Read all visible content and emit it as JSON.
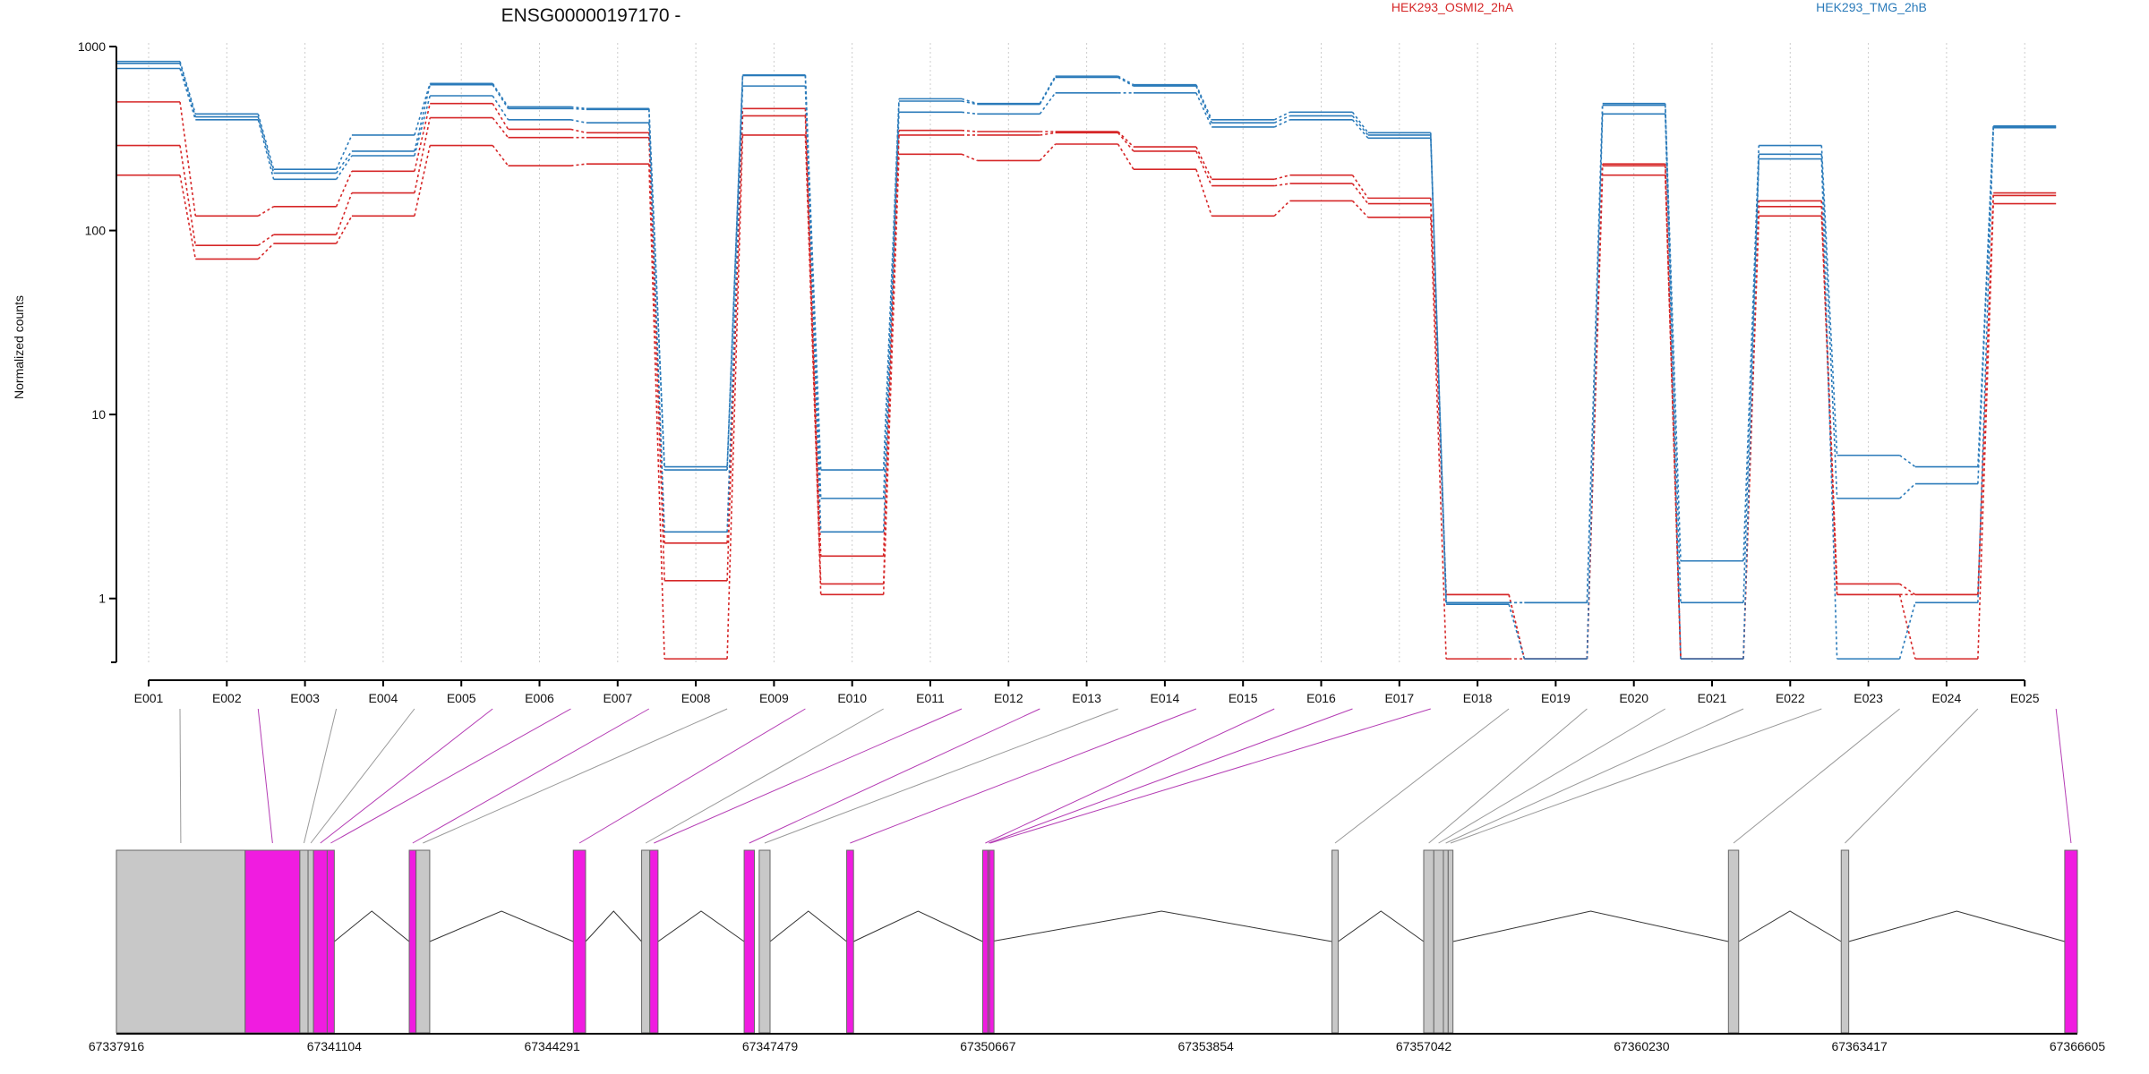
{
  "chart_data": {
    "type": "line",
    "title": "ENSG00000197170 -",
    "ylabel": "Normalized counts",
    "yscale": "log",
    "ylim": [
      0.45,
      1000
    ],
    "yticks": [
      {
        "value": 1,
        "label": "1"
      },
      {
        "value": 10,
        "label": "10"
      },
      {
        "value": 100,
        "label": "100"
      },
      {
        "value": 1000,
        "label": "1000"
      }
    ],
    "grid": "vertical-dotted",
    "legend": [
      {
        "name": "HEK293_OSMI2_2hA",
        "color": "#d62728"
      },
      {
        "name": "HEK293_TMG_2hB",
        "color": "#2b7bba"
      }
    ],
    "legend_position": "top",
    "categories": [
      "E001",
      "E002",
      "E003",
      "E004",
      "E005",
      "E006",
      "E007",
      "E008",
      "E009",
      "E010",
      "E011",
      "E012",
      "E013",
      "E014",
      "E015",
      "E016",
      "E017",
      "E018",
      "E019",
      "E020",
      "E021",
      "E022",
      "E023",
      "E024",
      "E025"
    ],
    "series": [
      {
        "group": "HEK293_OSMI2_2hA",
        "color": "#d62728",
        "values": [
          500,
          120,
          135,
          210,
          490,
          355,
          340,
          2.0,
          460,
          1.7,
          350,
          345,
          345,
          285,
          190,
          200,
          150,
          1.05,
          0.47,
          230,
          0.47,
          145,
          1.2,
          1.05,
          160
        ]
      },
      {
        "group": "HEK293_OSMI2_2hA",
        "color": "#d62728",
        "values": [
          290,
          83,
          95,
          160,
          410,
          320,
          320,
          1.25,
          420,
          1.2,
          330,
          330,
          340,
          270,
          175,
          180,
          140,
          1.05,
          0.47,
          225,
          0.47,
          135,
          1.05,
          1.05,
          155
        ]
      },
      {
        "group": "HEK293_OSMI2_2hA",
        "color": "#d62728",
        "values": [
          200,
          70,
          85,
          120,
          290,
          225,
          230,
          0.47,
          330,
          1.05,
          260,
          240,
          295,
          215,
          120,
          145,
          118,
          0.47,
          0.47,
          200,
          0.47,
          120,
          1.05,
          0.47,
          140
        ]
      },
      {
        "group": "HEK293_TMG_2hB",
        "color": "#2b7bba",
        "values": [
          830,
          430,
          215,
          330,
          630,
          470,
          460,
          5.2,
          700,
          5.0,
          520,
          490,
          690,
          620,
          400,
          440,
          340,
          0.95,
          0.95,
          490,
          1.6,
          290,
          6.0,
          5.2,
          370
        ]
      },
      {
        "group": "HEK293_TMG_2hB",
        "color": "#2b7bba",
        "values": [
          810,
          415,
          205,
          270,
          620,
          460,
          455,
          5.0,
          695,
          3.5,
          505,
          485,
          680,
          610,
          385,
          420,
          330,
          0.95,
          0.95,
          480,
          0.95,
          260,
          3.5,
          4.2,
          365
        ]
      },
      {
        "group": "HEK293_TMG_2hB",
        "color": "#2b7bba",
        "values": [
          760,
          400,
          190,
          255,
          540,
          400,
          385,
          2.3,
          610,
          2.3,
          440,
          430,
          560,
          560,
          365,
          400,
          318,
          0.93,
          0.47,
          430,
          0.47,
          245,
          0.47,
          0.95,
          362
        ]
      }
    ],
    "gene_model": {
      "coordinate_labels": [
        "67337916",
        "67341104",
        "67344291",
        "67347479",
        "67350667",
        "67353854",
        "67357042",
        "67360230",
        "67363417",
        "67366605"
      ],
      "coordinate_range": [
        67337916,
        67366605
      ],
      "colors": {
        "highlighted": "#f01ce0",
        "normal": "#c8c8c8",
        "highlight_connector": "#b43cb4",
        "normal_connector": "#999999"
      },
      "exons": [
        {
          "label": "E001",
          "start": 67337916,
          "end": 67339800,
          "highlighted": false
        },
        {
          "label": "E002",
          "start": 67339800,
          "end": 67340600,
          "highlighted": true
        },
        {
          "label": "E003",
          "start": 67340600,
          "end": 67340720,
          "highlighted": false
        },
        {
          "label": "E004",
          "start": 67340720,
          "end": 67340800,
          "highlighted": false
        },
        {
          "label": "E005",
          "start": 67340800,
          "end": 67341000,
          "highlighted": true
        },
        {
          "label": "E006",
          "start": 67341000,
          "end": 67341104,
          "highlighted": true
        },
        {
          "label": "E007",
          "start": 67342200,
          "end": 67342300,
          "highlighted": true
        },
        {
          "label": "E008",
          "start": 67342300,
          "end": 67342500,
          "highlighted": false
        },
        {
          "label": "E009",
          "start": 67344600,
          "end": 67344780,
          "highlighted": true
        },
        {
          "label": "E010",
          "start": 67345600,
          "end": 67345720,
          "highlighted": false
        },
        {
          "label": "E011",
          "start": 67345720,
          "end": 67345840,
          "highlighted": true
        },
        {
          "label": "E012",
          "start": 67347100,
          "end": 67347250,
          "highlighted": true
        },
        {
          "label": "E013",
          "start": 67347320,
          "end": 67347479,
          "highlighted": false
        },
        {
          "label": "E014",
          "start": 67348600,
          "end": 67348700,
          "highlighted": true
        },
        {
          "label": "E015",
          "start": 67350590,
          "end": 67350667,
          "highlighted": true
        },
        {
          "label": "E016",
          "start": 67350667,
          "end": 67350690,
          "highlighted": true
        },
        {
          "label": "E017",
          "start": 67350690,
          "end": 67350710,
          "highlighted": true
        },
        {
          "label": "E018",
          "start": 67355700,
          "end": 67355790,
          "highlighted": false
        },
        {
          "label": "E019",
          "start": 67357042,
          "end": 67357190,
          "highlighted": false
        },
        {
          "label": "E020",
          "start": 67357190,
          "end": 67357330,
          "highlighted": false
        },
        {
          "label": "E021",
          "start": 67357330,
          "end": 67357400,
          "highlighted": false
        },
        {
          "label": "E022",
          "start": 67357400,
          "end": 67357470,
          "highlighted": false
        },
        {
          "label": "E023",
          "start": 67361500,
          "end": 67361650,
          "highlighted": false
        },
        {
          "label": "E024",
          "start": 67363150,
          "end": 67363260,
          "highlighted": false
        },
        {
          "label": "E025",
          "start": 67366420,
          "end": 67366605,
          "highlighted": true
        }
      ]
    }
  }
}
